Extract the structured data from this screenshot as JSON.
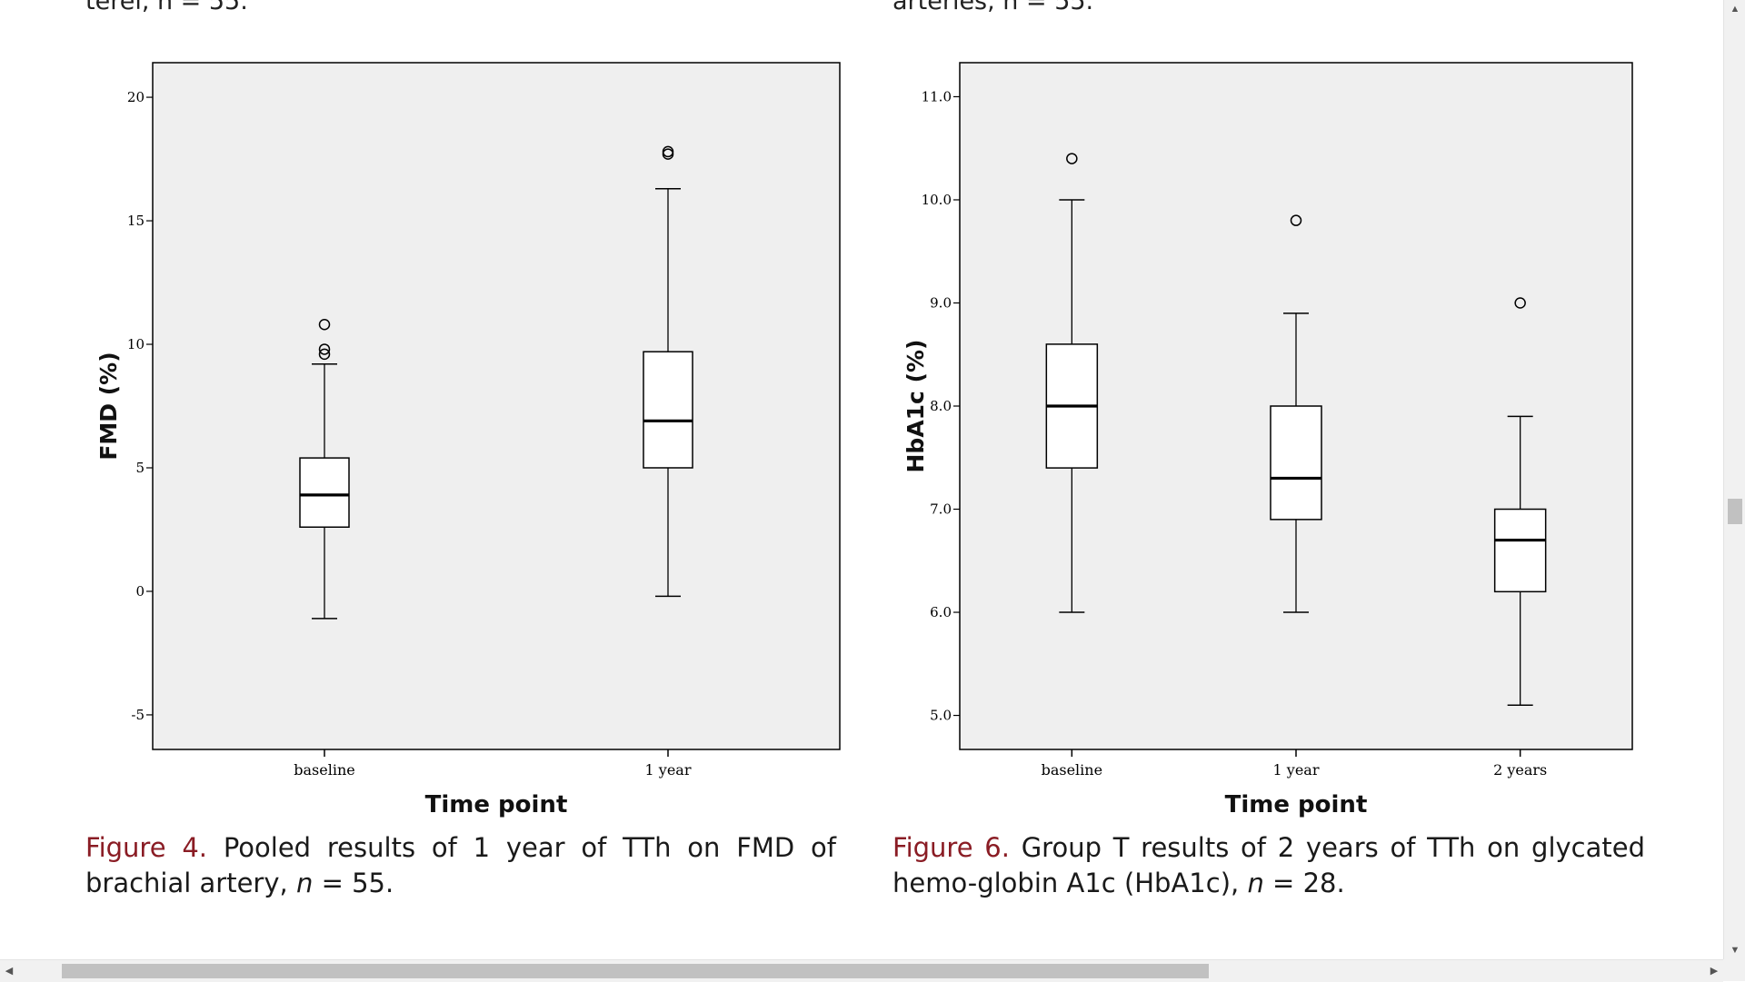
{
  "page": {
    "cut_text_left": "terel, n = 55.",
    "cut_text_right": "arteries, n = 55."
  },
  "figures": [
    {
      "label": "Figure 4.",
      "caption_pre": "Pooled results of 1 year of TTh on FMD of brachial artery, ",
      "caption_n": "n",
      "caption_post": " = 55."
    },
    {
      "label": "Figure 6.",
      "caption_pre": "Group T results of 2 years of TTh on glycated hemo-globin A1c (HbA1c), ",
      "caption_n": "n",
      "caption_post": " = 28."
    }
  ],
  "chart_data": [
    {
      "type": "box",
      "xlabel": "Time point",
      "ylabel": "FMD (%)",
      "ylim": [
        -6.4,
        21.4
      ],
      "yticks": [
        20,
        15,
        10,
        5,
        0,
        -5
      ],
      "ytick_labels": [
        "20",
        "15",
        "10",
        "5",
        "0",
        "-5"
      ],
      "grid": false,
      "categories": [
        "baseline",
        "1 year"
      ],
      "boxes": [
        {
          "whisker_low": -1.1,
          "q1": 2.6,
          "median": 3.9,
          "q3": 5.4,
          "whisker_high": 9.2,
          "outliers": [
            9.6,
            9.8,
            10.8
          ]
        },
        {
          "whisker_low": -0.2,
          "q1": 5.0,
          "median": 6.9,
          "q3": 9.7,
          "whisker_high": 16.3,
          "outliers": [
            17.7,
            17.8
          ]
        }
      ]
    },
    {
      "type": "box",
      "xlabel": "Time point",
      "ylabel": "HbA1c (%)",
      "ylim": [
        4.67,
        11.33
      ],
      "yticks": [
        11.0,
        10.0,
        9.0,
        8.0,
        7.0,
        6.0,
        5.0
      ],
      "ytick_labels": [
        "11.0",
        "10.0",
        "9.0",
        "8.0",
        "7.0",
        "6.0",
        "5.0"
      ],
      "grid": false,
      "categories": [
        "baseline",
        "1 year",
        "2 years"
      ],
      "boxes": [
        {
          "whisker_low": 6.0,
          "q1": 7.4,
          "median": 8.0,
          "q3": 8.6,
          "whisker_high": 10.0,
          "outliers": [
            10.4
          ]
        },
        {
          "whisker_low": 6.0,
          "q1": 6.9,
          "median": 7.3,
          "q3": 8.0,
          "whisker_high": 8.9,
          "outliers": [
            9.8
          ]
        },
        {
          "whisker_low": 5.1,
          "q1": 6.2,
          "median": 6.7,
          "q3": 7.0,
          "whisker_high": 7.9,
          "outliers": [
            9.0
          ]
        }
      ]
    }
  ],
  "scrollbars": {
    "vertical_position": 0.535,
    "horizontal_position": 0.08,
    "horizontal_visible_fraction": 0.68
  },
  "colors": {
    "plot_background": "#efefef",
    "figure_label": "#8a1c24",
    "scrollbar_thumb": "#c1c1c1"
  }
}
